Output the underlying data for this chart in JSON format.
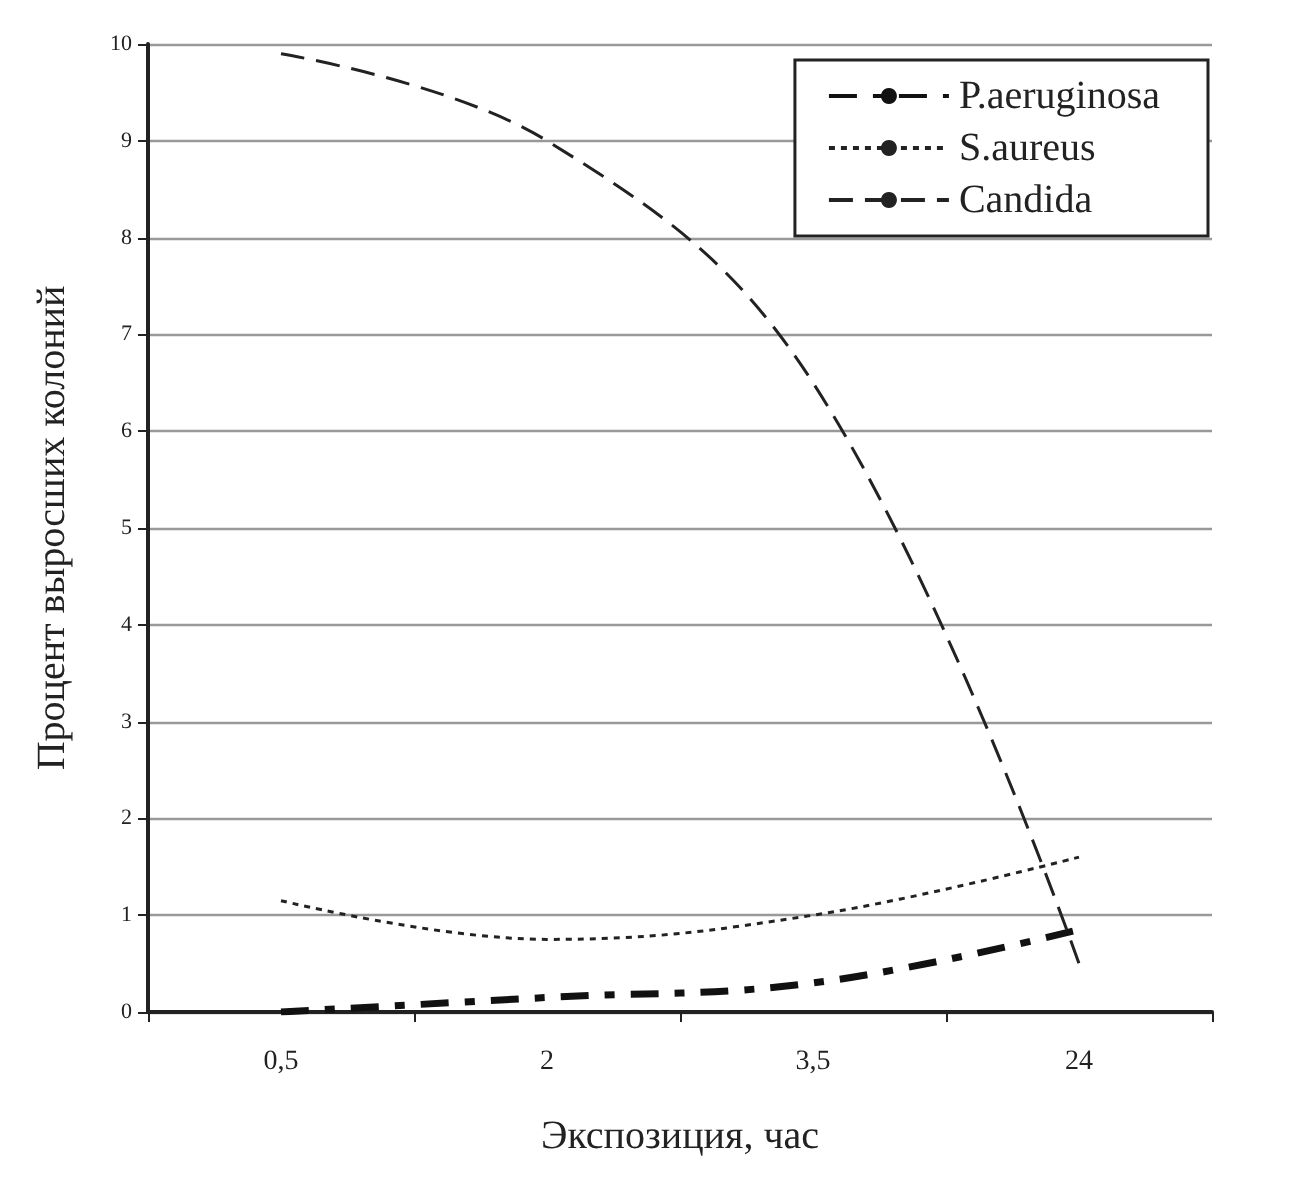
{
  "chart_data": {
    "type": "line",
    "xlabel": "Экспозиция, час",
    "ylabel": "Процент выросших колоний",
    "categories": [
      "0,5",
      "2",
      "3,5",
      "24"
    ],
    "series": [
      {
        "name": "P.aeruginosa",
        "color": "#111111",
        "line_style": "dashed",
        "values": [
          0,
          0.15,
          0.3,
          0.85
        ]
      },
      {
        "name": "S.aureus",
        "color": "#222222",
        "line_style": "dotted",
        "values": [
          1.15,
          0.75,
          1.0,
          1.6
        ]
      },
      {
        "name": "Candida",
        "color": "#222222",
        "line_style": "dashed",
        "values": [
          9.9,
          9.0,
          6.5,
          0.5
        ]
      }
    ],
    "ylim": [
      0,
      10
    ],
    "yticks": [
      0,
      1,
      2,
      3,
      4,
      5,
      6,
      7,
      8,
      9,
      10
    ],
    "grid": "y",
    "legend": "top right",
    "marker": "none"
  }
}
